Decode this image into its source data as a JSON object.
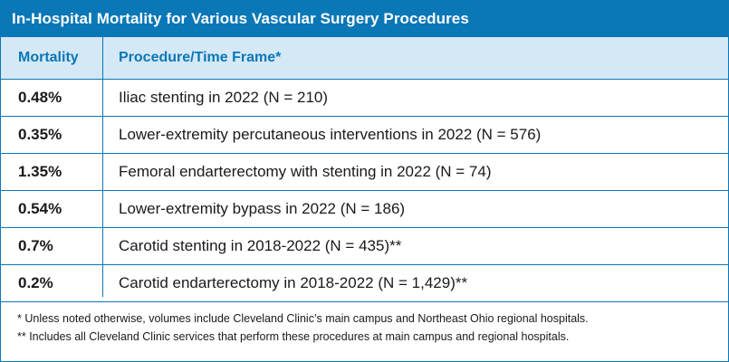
{
  "title": "In-Hospital Mortality for Various Vascular Surgery Procedures",
  "columns": {
    "mortality": "Mortality",
    "procedure": "Procedure/Time Frame*"
  },
  "rows": [
    {
      "mortality": "0.48%",
      "procedure": "Iliac stenting in 2022 (N = 210)"
    },
    {
      "mortality": "0.35%",
      "procedure": "Lower-extremity percutaneous interventions in 2022 (N = 576)"
    },
    {
      "mortality": "1.35%",
      "procedure": "Femoral endarterectomy with stenting in 2022 (N = 74)"
    },
    {
      "mortality": "0.54%",
      "procedure": "Lower-extremity bypass in 2022 (N = 186)"
    },
    {
      "mortality": "0.7%",
      "procedure": "Carotid stenting in 2018-2022 (N = 435)**"
    },
    {
      "mortality": "0.2%",
      "procedure": "Carotid endarterectomy in 2018-2022 (N = 1,429)**"
    }
  ],
  "footnotes": [
    "* Unless noted otherwise, volumes include Cleveland Clinic’s main campus and Northeast Ohio regional hospitals.",
    "** Includes all Cleveland Clinic services that perform these procedures at main campus and regional hospitals."
  ],
  "colors": {
    "accent": "#0a77b7",
    "header_fill": "#d5e8f5"
  }
}
